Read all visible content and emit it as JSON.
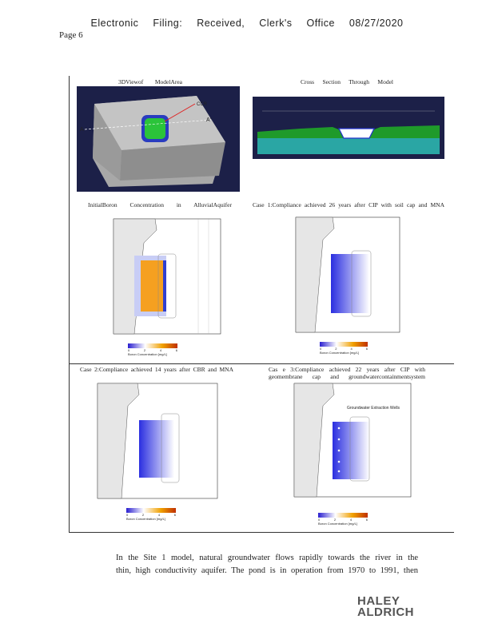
{
  "header": {
    "filing": "Electronic Filing: Received, Clerk's Office 08/27/2020",
    "page": "Page 6"
  },
  "panels": {
    "view3d": {
      "caption": "3DViewof ModelArea",
      "ccr_label": "CCR",
      "a_label": "A",
      "a_prime_label": "A'"
    },
    "xsection": {
      "caption": "Cross Section Through Model"
    },
    "initial": {
      "caption": "InitialBoron Concentration in AlluvialAquifer"
    },
    "case1": {
      "caption": "Case 1:Compliance achieved 26 years after CIP with soil cap and MNA"
    },
    "case2": {
      "caption": "Case 2:Compliance achieved 14 years after CBR and MNA"
    },
    "case3": {
      "caption": "Cas e 3:Compliance achieved 22 years after CIP with geomembrane cap and groundwatercontainmentsystem",
      "wells_label": "Groundwater Extraction Wells"
    }
  },
  "legend": {
    "title": "Boron Concentration [mg/L]",
    "ticks": [
      "0",
      "2",
      "4",
      "6"
    ]
  },
  "body_text": {
    "line1": "In the Site 1 model, natural groundwater flows rapidly towards the river in the",
    "line2": "thin, high conductivity aquifer. The pond is in operation from 1970 to 1991, then"
  },
  "logo": {
    "line1": "HALEY",
    "line2": "ALDRICH"
  }
}
